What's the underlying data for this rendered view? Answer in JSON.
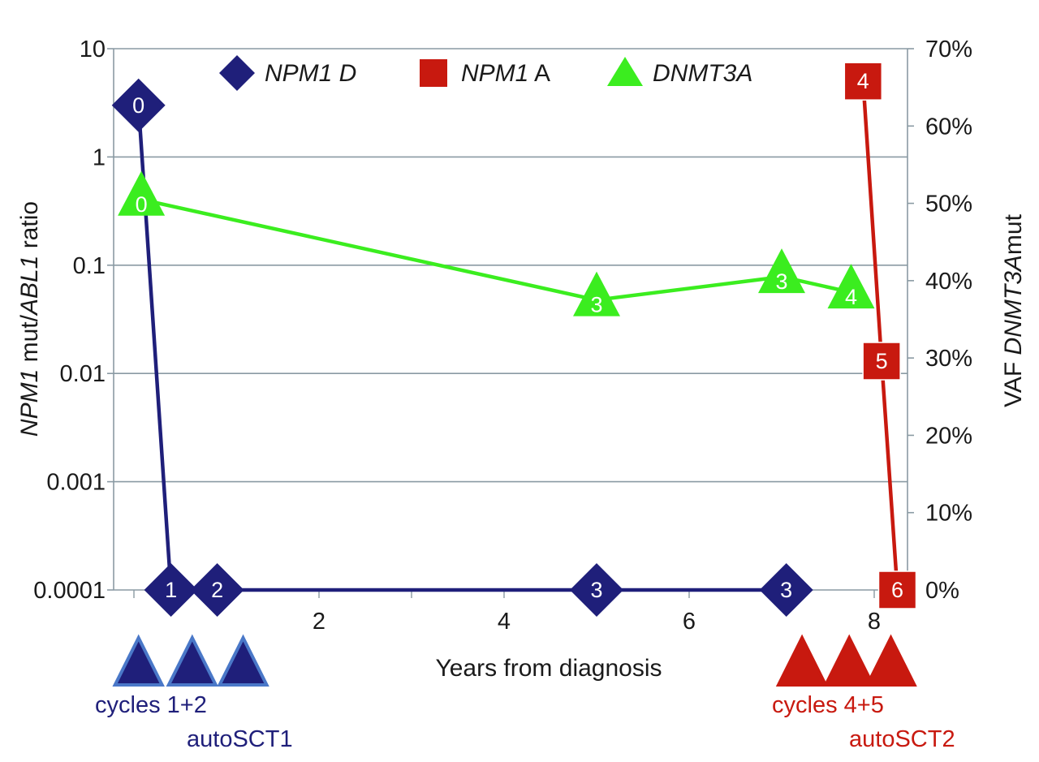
{
  "chart_data": {
    "type": "line",
    "x_label": "Years from diagnosis",
    "x_ticks": [
      2,
      4,
      6,
      8
    ],
    "x_range": [
      0,
      8.3
    ],
    "y_left": {
      "label_parts": [
        {
          "text": "NPM1",
          "italic": true
        },
        {
          "text": " mut/",
          "italic": false
        },
        {
          "text": "ABL1",
          "italic": true
        },
        {
          "text": " ratio",
          "italic": false
        }
      ],
      "scale": "log",
      "range": [
        0.0001,
        10
      ],
      "ticks": [
        "10",
        "1",
        "0.1",
        "0.01",
        "0.001",
        "0.0001"
      ]
    },
    "y_right": {
      "label_parts": [
        {
          "text": "VAF ",
          "italic": false
        },
        {
          "text": "DNMT3A",
          "italic": true
        },
        {
          "text": "mut",
          "italic": false
        }
      ],
      "range": [
        0,
        70
      ],
      "ticks": [
        "0%",
        "10%",
        "20%",
        "30%",
        "40%",
        "50%",
        "60%",
        "70%"
      ]
    },
    "legend": [
      {
        "name_parts": [
          {
            "text": "NPM1 D",
            "italic": true
          }
        ],
        "marker": "diamond",
        "color": "#1f1f7a"
      },
      {
        "name_parts": [
          {
            "text": "NPM1",
            "italic": true
          },
          {
            "text": " A",
            "italic": false
          }
        ],
        "marker": "square",
        "color": "#c8190f"
      },
      {
        "name_parts": [
          {
            "text": "DNMT3A",
            "italic": true
          }
        ],
        "marker": "triangle",
        "color": "#3bed1f"
      }
    ],
    "series": [
      {
        "name": "NPM1 D",
        "axis": "left",
        "marker": "diamond",
        "color": "#1f1f7a",
        "points": [
          {
            "x": 0.05,
            "y": 3,
            "label": "0"
          },
          {
            "x": 0.4,
            "y": 0.0001,
            "label": "1"
          },
          {
            "x": 0.9,
            "y": 0.0001,
            "label": "2"
          },
          {
            "x": 5.0,
            "y": 0.0001,
            "label": "3"
          },
          {
            "x": 7.05,
            "y": 0.0001,
            "label": "3"
          }
        ]
      },
      {
        "name": "NPM1 A",
        "axis": "left",
        "marker": "square",
        "color": "#c8190f",
        "points": [
          {
            "x": 7.88,
            "y": 5,
            "label": "4"
          },
          {
            "x": 8.08,
            "y": 0.013,
            "label": "5"
          },
          {
            "x": 8.25,
            "y": 0.0001,
            "label": "6"
          }
        ]
      },
      {
        "name": "DNMT3A",
        "axis": "right",
        "marker": "triangle",
        "color": "#3bed1f",
        "points": [
          {
            "x": 0.08,
            "y": 50.5,
            "label": "0"
          },
          {
            "x": 5.0,
            "y": 37.5,
            "label": "3"
          },
          {
            "x": 7.0,
            "y": 40.5,
            "label": "3"
          },
          {
            "x": 7.75,
            "y": 38.5,
            "label": "4"
          }
        ]
      }
    ],
    "treatment_markers": [
      {
        "x": 0.05,
        "color": "#1f1f7a",
        "edge": "#4a78c8"
      },
      {
        "x": 0.63,
        "color": "#1f1f7a",
        "edge": "#4a78c8"
      },
      {
        "x": 1.18,
        "color": "#1f1f7a",
        "edge": "#4a78c8"
      },
      {
        "x": 7.22,
        "color": "#c8190f",
        "edge": "#c8190f"
      },
      {
        "x": 7.73,
        "color": "#c8190f",
        "edge": "#c8190f"
      },
      {
        "x": 8.18,
        "color": "#c8190f",
        "edge": "#c8190f"
      }
    ],
    "annotations": [
      {
        "text": "cycles 1+2",
        "color": "#1f1f7a",
        "x": 0.1,
        "row": 1
      },
      {
        "text": "autoSCT1",
        "color": "#1f1f7a",
        "x": 1.2,
        "row": 2
      },
      {
        "text": "cycles 4+5",
        "color": "#c8190f",
        "x": 7.2,
        "row": 1
      },
      {
        "text": "autoSCT2",
        "color": "#c8190f",
        "x": 8.14,
        "row": 2
      }
    ]
  }
}
